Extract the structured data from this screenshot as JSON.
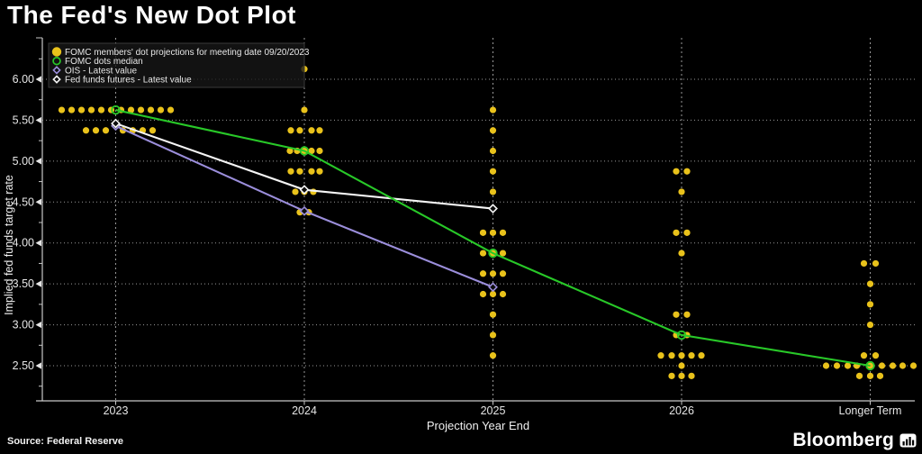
{
  "header": {
    "title": "The Fed's New Dot Plot"
  },
  "footer": {
    "source": "Source: Federal Reserve",
    "brand": "Bloomberg"
  },
  "colors": {
    "background": "#000000",
    "dot": "#e9c21b",
    "median": "#28c828",
    "ois": "#9b8edb",
    "futures": "#f5f5f5",
    "grid": "#999999",
    "axis": "#c8c8c8",
    "tick_text": "#e6e6e6",
    "legend_text": "#e8e8e8"
  },
  "legend": {
    "items": [
      {
        "marker": "filled-circle",
        "color_key": "dot",
        "label": "FOMC members' dot projections for meeting date 09/20/2023"
      },
      {
        "marker": "open-circle",
        "color_key": "median",
        "label": "FOMC dots median"
      },
      {
        "marker": "open-diamond",
        "color_key": "ois",
        "label": "OIS - Latest value"
      },
      {
        "marker": "open-diamond",
        "color_key": "futures",
        "label": "Fed funds futures - Latest value"
      }
    ]
  },
  "chart_data": {
    "type": "scatter",
    "title": "The Fed's New Dot Plot",
    "xlabel": "Projection Year End",
    "ylabel": "Implied fed funds target rate",
    "x_categories": [
      "2023",
      "2024",
      "2025",
      "2026",
      "Longer Term"
    ],
    "y_ticks": [
      {
        "label": "6.00",
        "value": 6.0
      },
      {
        "label": "5.50",
        "value": 5.5
      },
      {
        "label": "5.00",
        "value": 5.0
      },
      {
        "label": "4.50",
        "value": 4.5
      },
      {
        "label": "4.00",
        "value": 4.0
      },
      {
        "label": "3.50",
        "value": 3.5
      },
      {
        "label": "3.00",
        "value": 3.0
      },
      {
        "label": "2.50",
        "value": 2.5
      }
    ],
    "ylim": [
      2.05,
      6.5
    ],
    "grid": true,
    "legend_position": "top-left",
    "dots": [
      {
        "year": "2023",
        "rows": [
          {
            "rate": 5.625,
            "offsets": [
              -60,
              -49,
              -38,
              -27,
              -16,
              -5,
              6,
              17,
              28,
              39,
              50,
              61
            ]
          },
          {
            "rate": 5.375,
            "offsets": [
              -33,
              -22,
              -11,
              8,
              19,
              30,
              41
            ]
          }
        ]
      },
      {
        "year": "2024",
        "rows": [
          {
            "rate": 6.125,
            "offsets": [
              0
            ]
          },
          {
            "rate": 5.625,
            "offsets": [
              0
            ]
          },
          {
            "rate": 5.375,
            "offsets": [
              -15,
              -5,
              8,
              17
            ]
          },
          {
            "rate": 5.125,
            "offsets": [
              -16,
              -8,
              0,
              8,
              17
            ]
          },
          {
            "rate": 4.875,
            "offsets": [
              -15,
              -5,
              8,
              17
            ]
          },
          {
            "rate": 4.625,
            "offsets": [
              -10,
              0,
              10
            ]
          },
          {
            "rate": 4.375,
            "offsets": [
              -5,
              5
            ]
          }
        ]
      },
      {
        "year": "2025",
        "rows": [
          {
            "rate": 5.625,
            "offsets": [
              0
            ]
          },
          {
            "rate": 5.375,
            "offsets": [
              0
            ]
          },
          {
            "rate": 5.125,
            "offsets": [
              0
            ]
          },
          {
            "rate": 4.875,
            "offsets": [
              0
            ]
          },
          {
            "rate": 4.625,
            "offsets": [
              0
            ]
          },
          {
            "rate": 4.125,
            "offsets": [
              -11,
              0,
              11
            ]
          },
          {
            "rate": 3.875,
            "offsets": [
              -11,
              0,
              11
            ]
          },
          {
            "rate": 3.625,
            "offsets": [
              -11,
              0,
              11
            ]
          },
          {
            "rate": 3.375,
            "offsets": [
              -11,
              0,
              11
            ]
          },
          {
            "rate": 3.125,
            "offsets": [
              0
            ]
          },
          {
            "rate": 2.875,
            "offsets": [
              0
            ]
          },
          {
            "rate": 2.625,
            "offsets": [
              0
            ]
          }
        ]
      },
      {
        "year": "2026",
        "rows": [
          {
            "rate": 4.875,
            "offsets": [
              -6,
              6
            ]
          },
          {
            "rate": 4.625,
            "offsets": [
              0
            ]
          },
          {
            "rate": 4.125,
            "offsets": [
              -6,
              6
            ]
          },
          {
            "rate": 3.875,
            "offsets": [
              0
            ]
          },
          {
            "rate": 3.125,
            "offsets": [
              -6,
              6
            ]
          },
          {
            "rate": 2.875,
            "offsets": [
              -6,
              6
            ]
          },
          {
            "rate": 2.625,
            "offsets": [
              -23,
              -11,
              0,
              11,
              22
            ]
          },
          {
            "rate": 2.5,
            "offsets": [
              0
            ]
          },
          {
            "rate": 2.375,
            "offsets": [
              -11,
              0,
              11
            ]
          }
        ]
      },
      {
        "year": "Longer Term",
        "rows": [
          {
            "rate": 3.75,
            "offsets": [
              -7,
              6
            ]
          },
          {
            "rate": 3.5,
            "offsets": [
              0
            ]
          },
          {
            "rate": 3.25,
            "offsets": [
              0
            ]
          },
          {
            "rate": 3.0,
            "offsets": [
              0
            ]
          },
          {
            "rate": 2.625,
            "offsets": [
              -7,
              6
            ]
          },
          {
            "rate": 2.5,
            "offsets": [
              -49,
              -37,
              -25,
              -15,
              0,
              13,
              25,
              36,
              48
            ]
          },
          {
            "rate": 2.375,
            "offsets": [
              -12,
              0,
              11
            ]
          }
        ]
      }
    ],
    "series": [
      {
        "name": "OIS - Latest value",
        "color_key": "ois",
        "marker": "open-diamond",
        "points": [
          {
            "x": "2023",
            "y": 5.43
          },
          {
            "x": "2024",
            "y": 4.39
          },
          {
            "x": "2025",
            "y": 3.46
          }
        ]
      },
      {
        "name": "Fed funds futures - Latest value",
        "color_key": "futures",
        "marker": "open-diamond",
        "points": [
          {
            "x": "2023",
            "y": 5.46
          },
          {
            "x": "2024",
            "y": 4.65
          },
          {
            "x": "2025",
            "y": 4.42
          }
        ]
      },
      {
        "name": "FOMC dots median",
        "color_key": "median",
        "marker": "open-circle",
        "points": [
          {
            "x": "2023",
            "y": 5.625
          },
          {
            "x": "2024",
            "y": 5.125
          },
          {
            "x": "2025",
            "y": 3.875
          },
          {
            "x": "2026",
            "y": 2.875
          },
          {
            "x": "Longer Term",
            "y": 2.5
          }
        ]
      }
    ]
  }
}
